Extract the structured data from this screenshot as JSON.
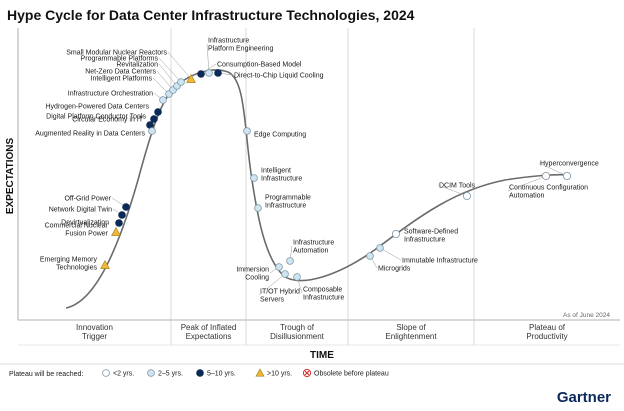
{
  "chart_data": {
    "type": "scatter",
    "title": "Hype Cycle for Data Center Infrastructure Technologies, 2024",
    "xlabel": "TIME",
    "ylabel": "EXPECTATIONS",
    "note": "As of June 2024",
    "brand": "Gartner",
    "phases": [
      [
        "Innovation",
        "Trigger"
      ],
      [
        "Peak of Inflated",
        "Expectations"
      ],
      [
        "Trough of",
        "Disillusionment"
      ],
      [
        "Slope of",
        "Enlightenment"
      ],
      [
        "Plateau of",
        "Productivity"
      ]
    ],
    "legend_title": "Plateau will be reached:",
    "legend": [
      {
        "key": "lt2",
        "label": "<2 yrs."
      },
      {
        "key": "2to5",
        "label": "2–5 yrs."
      },
      {
        "key": "5to10",
        "label": "5–10 yrs."
      },
      {
        "key": "gt10",
        "label": ">10 yrs."
      },
      {
        "key": "obsolete",
        "label": "Obsolete before plateau"
      }
    ],
    "marker_colors": {
      "lt2": "#ffffff",
      "2to5": "#cfe6f2",
      "5to10": "#0d2a57",
      "gt10": "#f2b833",
      "obsolete": "#d62f2f"
    },
    "points": [
      {
        "name": [
          "Emerging Memory",
          "Technologies"
        ],
        "category": "gt10",
        "side": "left"
      },
      {
        "name": [
          "Commercial Nuclear",
          "Fusion Power"
        ],
        "category": "gt10",
        "side": "left"
      },
      {
        "name": [
          "Devirtualization"
        ],
        "category": "5to10",
        "side": "left"
      },
      {
        "name": [
          "Network Digital Twin"
        ],
        "category": "5to10",
        "side": "left"
      },
      {
        "name": [
          "Off-Grid Power"
        ],
        "category": "5to10",
        "side": "left"
      },
      {
        "name": [
          "Circular Economy in IT"
        ],
        "category": "5to10",
        "side": "left"
      },
      {
        "name": [
          "Augmented Reality in Data Centers"
        ],
        "category": "2to5",
        "side": "left"
      },
      {
        "name": [
          "Digital Platform Conductor Tools"
        ],
        "category": "5to10",
        "side": "left"
      },
      {
        "name": [
          "Hydrogen-Powered Data Centers"
        ],
        "category": "5to10",
        "side": "left"
      },
      {
        "name": [
          "Infrastructure Orchestration"
        ],
        "category": "2to5",
        "side": "left"
      },
      {
        "name": [
          "Intelligent Platforms"
        ],
        "category": "2to5",
        "side": "left"
      },
      {
        "name": [
          "Net-Zero Data Centers"
        ],
        "category": "2to5",
        "side": "left"
      },
      {
        "name": [
          "Revitalization"
        ],
        "category": "2to5",
        "side": "left"
      },
      {
        "name": [
          "Programmable Platforms"
        ],
        "category": "2to5",
        "side": "left"
      },
      {
        "name": [
          "Small Modular Nuclear Reactors"
        ],
        "category": "gt10",
        "side": "left"
      },
      {
        "name": [
          "Infrastructure",
          "Platform Engineering"
        ],
        "category": "2to5",
        "side": "right"
      },
      {
        "name": [
          "Consumption-Based Model"
        ],
        "category": "5to10",
        "side": "right"
      },
      {
        "name": [
          "Direct-to-Chip Liquid Cooling"
        ],
        "category": "5to10",
        "side": "right"
      },
      {
        "name": [
          "Edge Computing"
        ],
        "category": "2to5",
        "side": "right"
      },
      {
        "name": [
          "Intelligent",
          "Infrastructure"
        ],
        "category": "2to5",
        "side": "right"
      },
      {
        "name": [
          "Programmable",
          "Infrastructure"
        ],
        "category": "2to5",
        "side": "right"
      },
      {
        "name": [
          "Infrastructure",
          "Automation"
        ],
        "category": "2to5",
        "side": "right"
      },
      {
        "name": [
          "Immersion",
          "Cooling"
        ],
        "category": "2to5",
        "side": "left"
      },
      {
        "name": [
          "IT/OT Hybrid",
          "Servers"
        ],
        "category": "2to5",
        "side": "below"
      },
      {
        "name": [
          "Composable",
          "Infrastructure"
        ],
        "category": "2to5",
        "side": "below"
      },
      {
        "name": [
          "Microgrids"
        ],
        "category": "2to5",
        "side": "right"
      },
      {
        "name": [
          "Immutable Infrastructure"
        ],
        "category": "2to5",
        "side": "right"
      },
      {
        "name": [
          "Software-Defined",
          "Infrastructure"
        ],
        "category": "lt2",
        "side": "right"
      },
      {
        "name": [
          "DCIM Tools"
        ],
        "category": "lt2",
        "side": "above"
      },
      {
        "name": [
          "Continuous Configuration",
          "Automation"
        ],
        "category": "lt2",
        "side": "below"
      },
      {
        "name": [
          "Hyperconvergence"
        ],
        "category": "lt2",
        "side": "above"
      }
    ]
  }
}
